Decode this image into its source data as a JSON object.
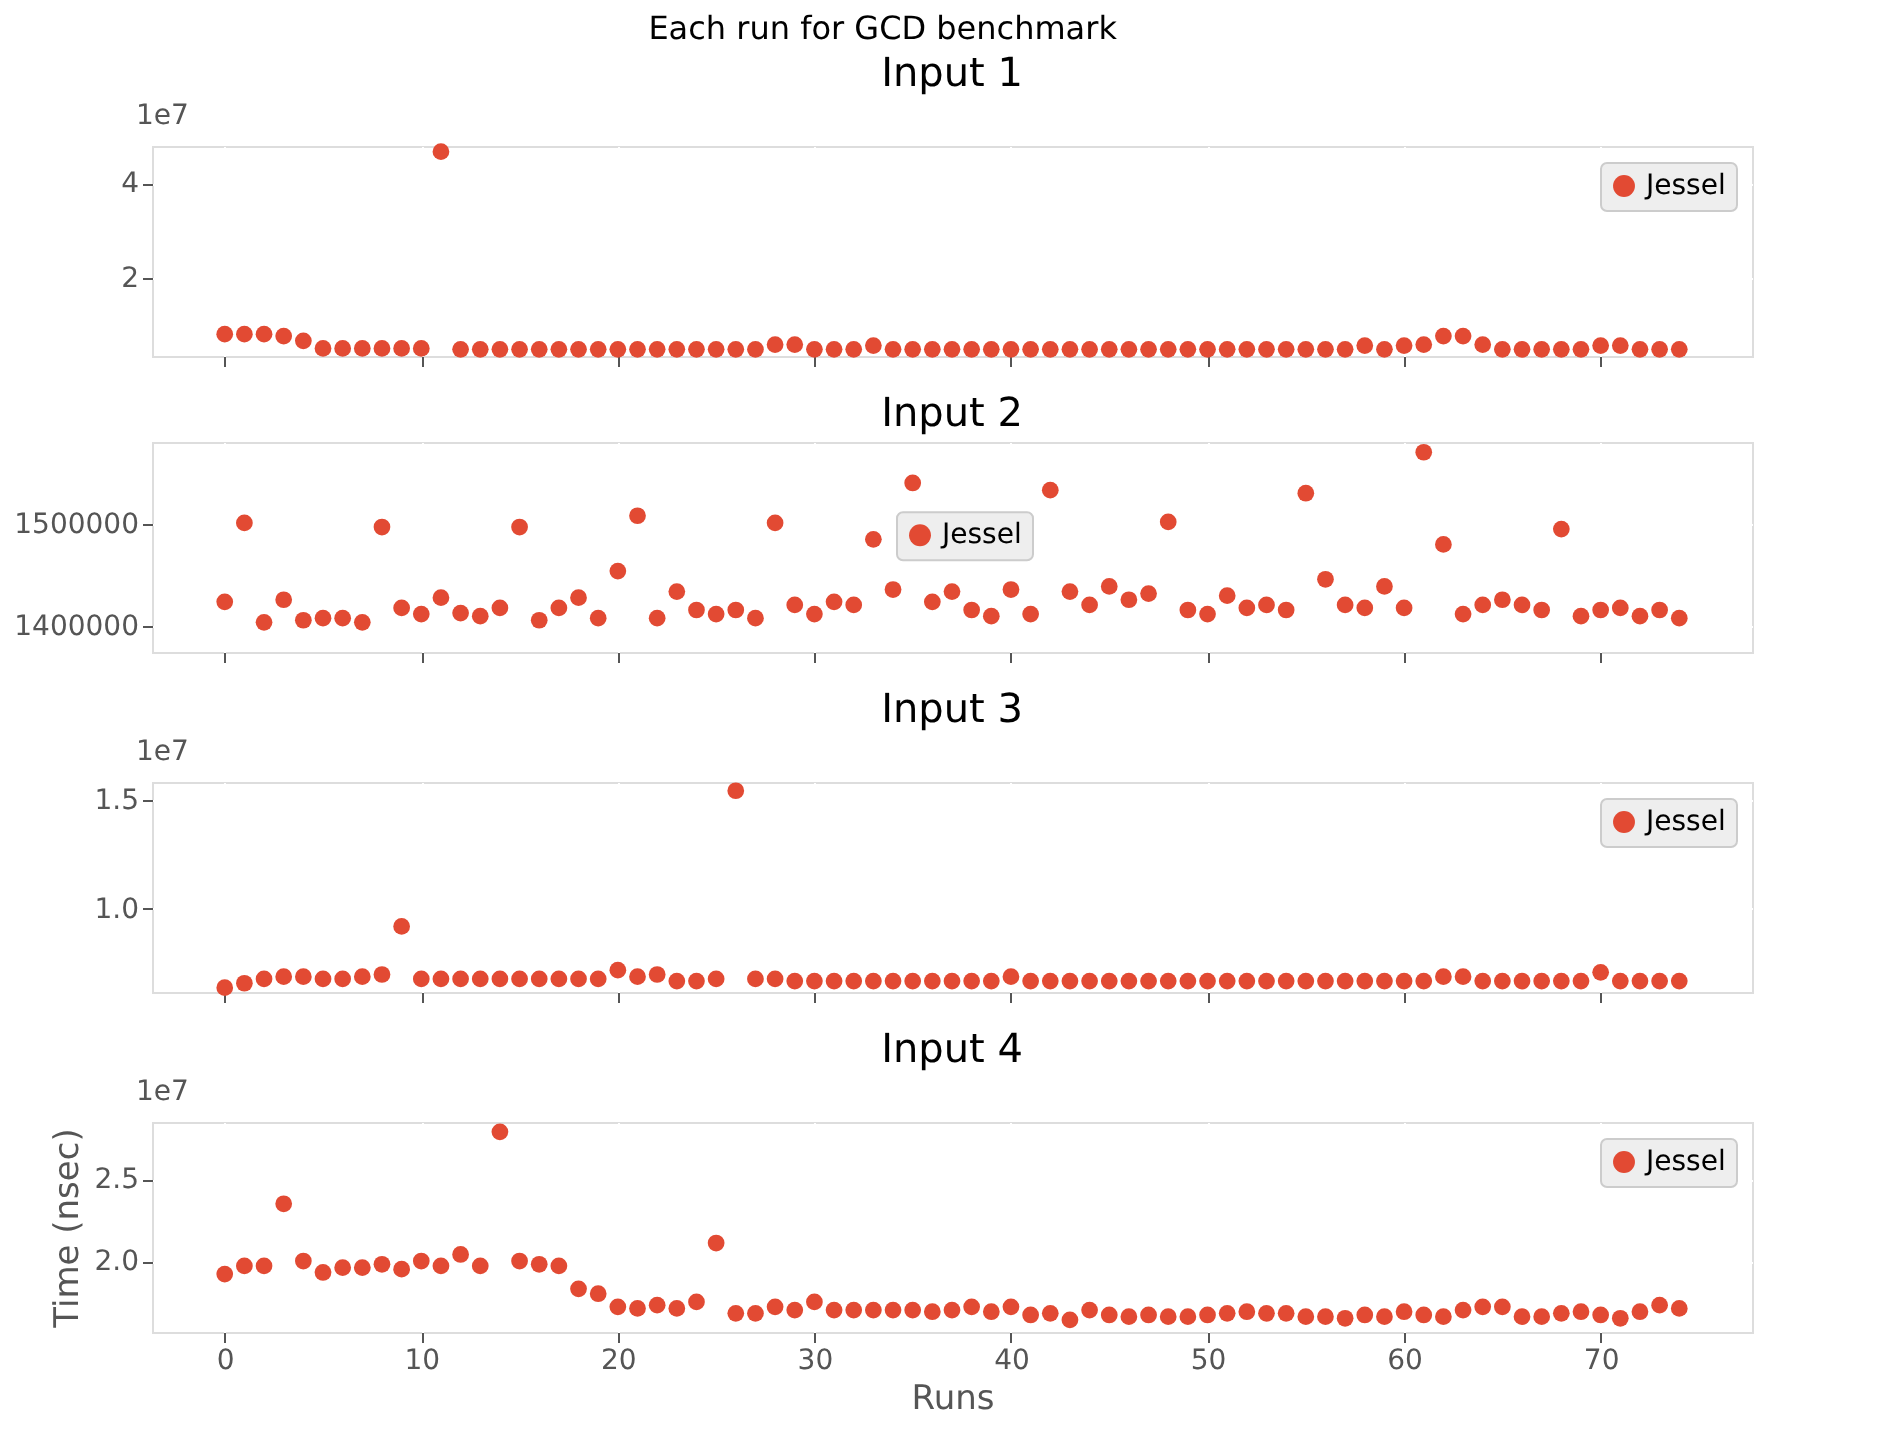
{
  "chart_data": [
    {
      "type": "scatter",
      "title": "Each run for GCD benchmark",
      "subtitle": "Input 1",
      "annotations": [
        "1e7"
      ],
      "x": [
        0,
        1,
        2,
        3,
        4,
        5,
        6,
        7,
        8,
        9,
        10,
        11,
        12,
        13,
        14,
        15,
        16,
        17,
        18,
        19,
        20,
        21,
        22,
        23,
        24,
        25,
        26,
        27,
        28,
        29,
        30,
        31,
        32,
        33,
        34,
        35,
        36,
        37,
        38,
        39,
        40,
        41,
        42,
        43,
        44,
        45,
        46,
        47,
        48,
        49,
        50,
        51,
        52,
        53,
        54,
        55,
        56,
        57,
        58,
        59,
        60,
        61,
        62,
        63,
        64,
        65,
        66,
        67,
        68,
        69,
        70,
        71,
        72,
        73,
        74
      ],
      "series": [
        {
          "name": "Jessel",
          "color": "#e24a33",
          "values": [
            0.82,
            0.82,
            0.82,
            0.78,
            0.68,
            0.52,
            0.52,
            0.52,
            0.52,
            0.52,
            0.52,
            4.67,
            0.5,
            0.5,
            0.5,
            0.5,
            0.5,
            0.5,
            0.5,
            0.5,
            0.5,
            0.5,
            0.5,
            0.5,
            0.5,
            0.5,
            0.5,
            0.5,
            0.6,
            0.6,
            0.5,
            0.5,
            0.5,
            0.58,
            0.5,
            0.5,
            0.5,
            0.5,
            0.5,
            0.5,
            0.5,
            0.5,
            0.5,
            0.5,
            0.5,
            0.5,
            0.5,
            0.5,
            0.5,
            0.5,
            0.5,
            0.5,
            0.5,
            0.5,
            0.5,
            0.5,
            0.5,
            0.5,
            0.58,
            0.5,
            0.58,
            0.6,
            0.78,
            0.78,
            0.6,
            0.5,
            0.5,
            0.5,
            0.5,
            0.5,
            0.58,
            0.58,
            0.5,
            0.5,
            0.5
          ]
        }
      ],
      "xlim": [
        -3.7,
        77.7
      ],
      "xticks": [
        0,
        10,
        20,
        30,
        40,
        50,
        60,
        70
      ],
      "ylim": [
        0.36,
        4.79
      ],
      "yticks": [
        2,
        4
      ],
      "tick_labels": "y",
      "grid": true,
      "legend": "top right",
      "marker": "circle"
    },
    {
      "type": "scatter",
      "title": "Input 2",
      "x": [
        0,
        1,
        2,
        3,
        4,
        5,
        6,
        7,
        8,
        9,
        10,
        11,
        12,
        13,
        14,
        15,
        16,
        17,
        18,
        19,
        20,
        21,
        22,
        23,
        24,
        25,
        26,
        27,
        28,
        29,
        30,
        31,
        32,
        33,
        34,
        35,
        36,
        37,
        38,
        39,
        40,
        41,
        42,
        43,
        44,
        45,
        46,
        47,
        48,
        49,
        50,
        51,
        52,
        53,
        54,
        55,
        56,
        57,
        58,
        59,
        60,
        61,
        62,
        63,
        64,
        65,
        66,
        67,
        68,
        69,
        70,
        71,
        72,
        73,
        74
      ],
      "series": [
        {
          "name": "Jessel",
          "color": "#e24a33",
          "values": [
            1424000,
            1501000,
            1404000,
            1426000,
            1406000,
            1408000,
            1408000,
            1404000,
            1497000,
            1418000,
            1412000,
            1428000,
            1413000,
            1410000,
            1418000,
            1497000,
            1406000,
            1418000,
            1428000,
            1408000,
            1454000,
            1508000,
            1408000,
            1434000,
            1416000,
            1412000,
            1416000,
            1408000,
            1501000,
            1421000,
            1412000,
            1424000,
            1421000,
            1485000,
            1436000,
            1540000,
            1424000,
            1434000,
            1416000,
            1410000,
            1436000,
            1412000,
            1533000,
            1434000,
            1421000,
            1439000,
            1426000,
            1432000,
            1502000,
            1416000,
            1412000,
            1430000,
            1418000,
            1421000,
            1416000,
            1530000,
            1446000,
            1421000,
            1418000,
            1439000,
            1418000,
            1570000,
            1480000,
            1412000,
            1421000,
            1426000,
            1421000,
            1416000,
            1495000,
            1410000,
            1416000,
            1418000,
            1410000,
            1416000,
            1408000
          ]
        }
      ],
      "xlim": [
        -3.7,
        77.7
      ],
      "xticks": [
        0,
        10,
        20,
        30,
        40,
        50,
        60,
        70
      ],
      "ylim": [
        1375000,
        1580000
      ],
      "yticks": [
        1400000,
        1500000
      ],
      "tick_labels": "y",
      "grid": true,
      "legend": "center",
      "marker": "circle"
    },
    {
      "type": "scatter",
      "title": "Input 3",
      "annotations": [
        "1e7"
      ],
      "x": [
        0,
        1,
        2,
        3,
        4,
        5,
        6,
        7,
        8,
        9,
        10,
        11,
        12,
        13,
        14,
        15,
        16,
        17,
        18,
        19,
        20,
        21,
        22,
        23,
        24,
        25,
        26,
        27,
        28,
        29,
        30,
        31,
        32,
        33,
        34,
        35,
        36,
        37,
        38,
        39,
        40,
        41,
        42,
        43,
        44,
        45,
        46,
        47,
        48,
        49,
        50,
        51,
        52,
        53,
        54,
        55,
        56,
        57,
        58,
        59,
        60,
        61,
        62,
        63,
        64,
        65,
        66,
        67,
        68,
        69,
        70,
        71,
        72,
        73,
        74
      ],
      "series": [
        {
          "name": "Jessel",
          "color": "#e24a33",
          "values": [
            0.64,
            0.66,
            0.68,
            0.69,
            0.69,
            0.68,
            0.68,
            0.69,
            0.7,
            0.92,
            0.68,
            0.68,
            0.68,
            0.68,
            0.68,
            0.68,
            0.68,
            0.68,
            0.68,
            0.68,
            0.72,
            0.69,
            0.7,
            0.67,
            0.67,
            0.68,
            1.54,
            0.68,
            0.68,
            0.67,
            0.67,
            0.67,
            0.67,
            0.67,
            0.67,
            0.67,
            0.67,
            0.67,
            0.67,
            0.67,
            0.69,
            0.67,
            0.67,
            0.67,
            0.67,
            0.67,
            0.67,
            0.67,
            0.67,
            0.67,
            0.67,
            0.67,
            0.67,
            0.67,
            0.67,
            0.67,
            0.67,
            0.67,
            0.67,
            0.67,
            0.67,
            0.67,
            0.69,
            0.69,
            0.67,
            0.67,
            0.67,
            0.67,
            0.67,
            0.67,
            0.71,
            0.67,
            0.67,
            0.67,
            0.67
          ]
        }
      ],
      "xlim": [
        -3.7,
        77.7
      ],
      "xticks": [
        0,
        10,
        20,
        30,
        40,
        50,
        60,
        70
      ],
      "ylim": [
        0.62,
        1.58
      ],
      "yticks": [
        {
          "value": 1,
          "label": "1.0"
        },
        1.5
      ],
      "tick_labels": "y",
      "grid": true,
      "legend": "top right",
      "marker": "circle"
    },
    {
      "type": "scatter",
      "title": "Input 4",
      "xlabel": "Runs",
      "ylabel": "Time (nsec)",
      "annotations": [
        "1e7"
      ],
      "x": [
        0,
        1,
        2,
        3,
        4,
        5,
        6,
        7,
        8,
        9,
        10,
        11,
        12,
        13,
        14,
        15,
        16,
        17,
        18,
        19,
        20,
        21,
        22,
        23,
        24,
        25,
        26,
        27,
        28,
        29,
        30,
        31,
        32,
        33,
        34,
        35,
        36,
        37,
        38,
        39,
        40,
        41,
        42,
        43,
        44,
        45,
        46,
        47,
        48,
        49,
        50,
        51,
        52,
        53,
        54,
        55,
        56,
        57,
        58,
        59,
        60,
        61,
        62,
        63,
        64,
        65,
        66,
        67,
        68,
        69,
        70,
        71,
        72,
        73,
        74
      ],
      "series": [
        {
          "name": "Jessel",
          "color": "#e24a33",
          "values": [
            1.92,
            1.97,
            1.97,
            2.35,
            2.0,
            1.93,
            1.96,
            1.96,
            1.98,
            1.95,
            2.0,
            1.97,
            2.04,
            1.97,
            2.79,
            2.0,
            1.98,
            1.97,
            1.83,
            1.8,
            1.72,
            1.71,
            1.73,
            1.71,
            1.75,
            2.11,
            1.68,
            1.68,
            1.72,
            1.7,
            1.75,
            1.7,
            1.7,
            1.7,
            1.7,
            1.7,
            1.69,
            1.7,
            1.72,
            1.69,
            1.72,
            1.67,
            1.68,
            1.64,
            1.7,
            1.67,
            1.66,
            1.67,
            1.66,
            1.66,
            1.67,
            1.68,
            1.69,
            1.68,
            1.68,
            1.66,
            1.66,
            1.65,
            1.67,
            1.66,
            1.69,
            1.67,
            1.66,
            1.7,
            1.72,
            1.72,
            1.66,
            1.66,
            1.68,
            1.69,
            1.67,
            1.65,
            1.69,
            1.73,
            1.71
          ]
        }
      ],
      "xlim": [
        -3.7,
        77.7
      ],
      "xticks": [
        0,
        10,
        20,
        30,
        40,
        50,
        60,
        70
      ],
      "ylim": [
        1.566,
        2.85
      ],
      "yticks": [
        {
          "value": 2,
          "label": "2.0"
        },
        2.5
      ],
      "grid": true,
      "legend": "top right",
      "marker": "circle"
    }
  ]
}
